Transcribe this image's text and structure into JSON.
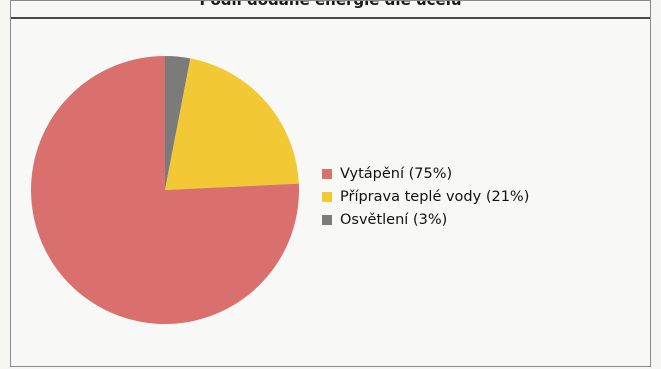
{
  "chart_data": {
    "type": "pie",
    "title": "Podíl dodané energie dle účelu",
    "slices": [
      {
        "label": "Osvětlení",
        "value": 3,
        "color": "#7b7b7b"
      },
      {
        "label": "Příprava teplé vody",
        "value": 21,
        "color": "#f2c935"
      },
      {
        "label": "Vytápění",
        "value": 75,
        "color": "#d9706d"
      }
    ],
    "legend": {
      "position": "right",
      "entries": [
        {
          "text": "Vytápění (75%)",
          "color": "#d9706d"
        },
        {
          "text": "Příprava teplé vody (21%)",
          "color": "#f2c935"
        },
        {
          "text": "Osvětlení (3%)",
          "color": "#7b7b7b"
        }
      ]
    }
  }
}
